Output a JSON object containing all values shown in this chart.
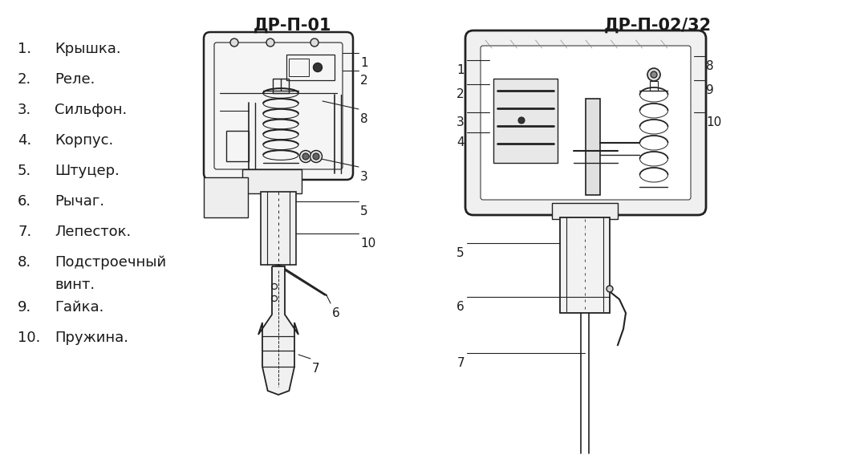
{
  "title1": "ДР-П-01",
  "title2": "ДР-П-02/32",
  "bg_color": "#ffffff",
  "text_color": "#1a1a1a",
  "title_fontsize": 15,
  "label_fontsize": 11,
  "list_fontsize": 13,
  "parts_list": [
    "Крышка.",
    "Реле.",
    "Сильфон.",
    "Корпус.",
    "Штуцер.",
    "Рычаг.",
    "Лепесток.",
    "Подстроечный",
    "Гайка.",
    "Пружина."
  ],
  "fig_width": 10.57,
  "fig_height": 5.92,
  "lc": "#222222"
}
